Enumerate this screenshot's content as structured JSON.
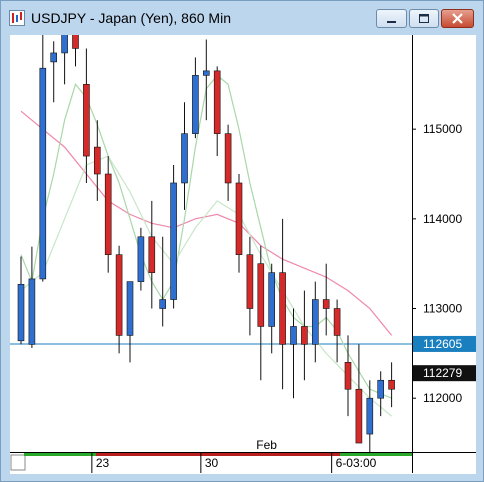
{
  "window": {
    "title": "USDJPY - Japan (Yen), 860 Min",
    "controls": [
      "minimize",
      "maximize",
      "close"
    ]
  },
  "chart_data": {
    "type": "candlestick",
    "symbol": "USDJPY",
    "ylim": [
      111400,
      116050
    ],
    "y_ticks": [
      "115000",
      "114000",
      "113000",
      "112000"
    ],
    "x_labels": [
      {
        "label": "23",
        "index": 6.5
      },
      {
        "label": "30",
        "index": 16.5
      },
      {
        "label": "Feb",
        "index": 22.5
      },
      {
        "label": "6-03:00",
        "index": 28.5
      }
    ],
    "price_line": {
      "value": 112605,
      "label": "112605",
      "color": "#1a7fbf"
    },
    "last_price": {
      "value": 112279,
      "label": "112279"
    },
    "candles": [
      {
        "o": 112640,
        "h": 113580,
        "l": 112600,
        "c": 113270
      },
      {
        "o": 112600,
        "h": 113690,
        "l": 112560,
        "c": 113330
      },
      {
        "o": 113330,
        "h": 116100,
        "l": 113300,
        "c": 115680
      },
      {
        "o": 115750,
        "h": 115980,
        "l": 115300,
        "c": 115850
      },
      {
        "o": 115850,
        "h": 116600,
        "l": 115500,
        "c": 116220
      },
      {
        "o": 116220,
        "h": 116400,
        "l": 115700,
        "c": 115900
      },
      {
        "o": 115500,
        "h": 115900,
        "l": 114400,
        "c": 114700
      },
      {
        "o": 114800,
        "h": 115100,
        "l": 114200,
        "c": 114500
      },
      {
        "o": 114500,
        "h": 114700,
        "l": 113400,
        "c": 113600
      },
      {
        "o": 113600,
        "h": 113700,
        "l": 112500,
        "c": 112700
      },
      {
        "o": 112700,
        "h": 113300,
        "l": 112400,
        "c": 113300
      },
      {
        "o": 113300,
        "h": 113900,
        "l": 113200,
        "c": 113800
      },
      {
        "o": 113800,
        "h": 114200,
        "l": 113000,
        "c": 113400
      },
      {
        "o": 113000,
        "h": 113800,
        "l": 112800,
        "c": 113100
      },
      {
        "o": 113100,
        "h": 114600,
        "l": 113000,
        "c": 114400
      },
      {
        "o": 114400,
        "h": 115300,
        "l": 114100,
        "c": 114950
      },
      {
        "o": 114950,
        "h": 115800,
        "l": 114900,
        "c": 115600
      },
      {
        "o": 115600,
        "h": 116000,
        "l": 115100,
        "c": 115650
      },
      {
        "o": 115650,
        "h": 115700,
        "l": 114700,
        "c": 114950
      },
      {
        "o": 114950,
        "h": 115050,
        "l": 114200,
        "c": 114400
      },
      {
        "o": 114400,
        "h": 114500,
        "l": 113400,
        "c": 113600
      },
      {
        "o": 113600,
        "h": 113800,
        "l": 112700,
        "c": 113000
      },
      {
        "o": 113500,
        "h": 113700,
        "l": 112200,
        "c": 112800
      },
      {
        "o": 112800,
        "h": 113500,
        "l": 112500,
        "c": 113400
      },
      {
        "o": 113400,
        "h": 114000,
        "l": 112100,
        "c": 112600
      },
      {
        "o": 112600,
        "h": 113000,
        "l": 112000,
        "c": 112800
      },
      {
        "o": 112800,
        "h": 113200,
        "l": 112200,
        "c": 112600
      },
      {
        "o": 112600,
        "h": 113300,
        "l": 112400,
        "c": 113100
      },
      {
        "o": 113100,
        "h": 113500,
        "l": 112700,
        "c": 113000
      },
      {
        "o": 113000,
        "h": 113100,
        "l": 112400,
        "c": 112700
      },
      {
        "o": 112400,
        "h": 112700,
        "l": 111800,
        "c": 112100
      },
      {
        "o": 112100,
        "h": 112600,
        "l": 111500,
        "c": 111500
      },
      {
        "o": 111600,
        "h": 112200,
        "l": 111400,
        "c": 112000
      },
      {
        "o": 112000,
        "h": 112300,
        "l": 111800,
        "c": 112200
      },
      {
        "o": 112200,
        "h": 112400,
        "l": 111900,
        "c": 112100
      }
    ],
    "overlays": [
      {
        "color": "#ee88aa",
        "points": [
          [
            0,
            115200
          ],
          [
            2,
            115000
          ],
          [
            4,
            114800
          ],
          [
            6,
            114500
          ],
          [
            8,
            114200
          ],
          [
            10,
            114050
          ],
          [
            12,
            113950
          ],
          [
            14,
            113900
          ],
          [
            16,
            114000
          ],
          [
            18,
            114050
          ],
          [
            20,
            113950
          ],
          [
            22,
            113700
          ],
          [
            24,
            113550
          ],
          [
            26,
            113450
          ],
          [
            28,
            113350
          ],
          [
            30,
            113200
          ],
          [
            32,
            113000
          ],
          [
            34,
            112700
          ]
        ]
      },
      {
        "color": "#a8d8a8",
        "points": [
          [
            0,
            113600
          ],
          [
            1,
            113300
          ],
          [
            2,
            114000
          ],
          [
            3,
            114500
          ],
          [
            4,
            115100
          ],
          [
            5,
            115500
          ],
          [
            6,
            115350
          ],
          [
            7,
            115050
          ],
          [
            8,
            114700
          ],
          [
            9,
            114400
          ],
          [
            10,
            114000
          ],
          [
            11,
            113600
          ],
          [
            12,
            113300
          ],
          [
            13,
            113100
          ],
          [
            14,
            113300
          ],
          [
            15,
            114000
          ],
          [
            16,
            114800
          ],
          [
            17,
            115450
          ],
          [
            18,
            115600
          ],
          [
            19,
            115500
          ],
          [
            20,
            115000
          ],
          [
            21,
            114400
          ],
          [
            22,
            113900
          ],
          [
            23,
            113400
          ],
          [
            24,
            113100
          ],
          [
            25,
            112900
          ],
          [
            26,
            112800
          ],
          [
            27,
            112800
          ],
          [
            28,
            112900
          ],
          [
            29,
            112750
          ],
          [
            30,
            112500
          ],
          [
            31,
            112300
          ],
          [
            32,
            112100
          ],
          [
            33,
            112050
          ],
          [
            34,
            112000
          ]
        ]
      },
      {
        "color": "#c8e6c8",
        "points": [
          [
            0,
            113200
          ],
          [
            2,
            113400
          ],
          [
            4,
            114000
          ],
          [
            6,
            114600
          ],
          [
            8,
            114700
          ],
          [
            10,
            114300
          ],
          [
            12,
            113800
          ],
          [
            14,
            113500
          ],
          [
            16,
            113900
          ],
          [
            18,
            114200
          ],
          [
            20,
            114050
          ],
          [
            22,
            113600
          ],
          [
            24,
            113200
          ],
          [
            26,
            112800
          ],
          [
            28,
            112500
          ],
          [
            30,
            112250
          ],
          [
            32,
            112000
          ],
          [
            34,
            111800
          ]
        ]
      }
    ]
  }
}
